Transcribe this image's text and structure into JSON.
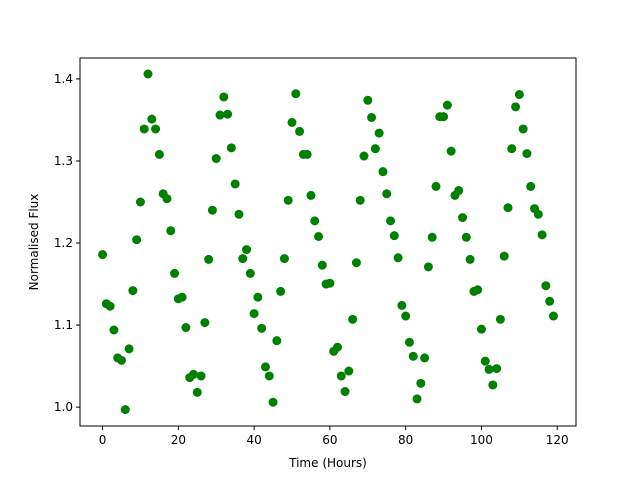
{
  "chart_data": {
    "type": "scatter",
    "x_label": "Time (Hours)",
    "y_label": "Normalised Flux",
    "xlim": [
      -5.95,
      124.95
    ],
    "ylim": [
      0.977,
      1.4255
    ],
    "xticks": [
      0,
      20,
      40,
      60,
      80,
      100,
      120
    ],
    "yticks": [
      {
        "value": 1.0,
        "label": "1.0"
      },
      1.1,
      1.2,
      1.3,
      1.4
    ],
    "series": [
      {
        "color": "#008000",
        "x": [
          0,
          1,
          2,
          3,
          4,
          5,
          6,
          7,
          8,
          9,
          10,
          11,
          12,
          13,
          14,
          15,
          16,
          17,
          18,
          19,
          20,
          21,
          22,
          23,
          24,
          25,
          26,
          27,
          28,
          29,
          30,
          31,
          32,
          33,
          34,
          35,
          36,
          37,
          38,
          39,
          40,
          41,
          42,
          43,
          44,
          45,
          46,
          47,
          48,
          49,
          50,
          51,
          52,
          53,
          54,
          55,
          56,
          57,
          58,
          59,
          60,
          61,
          62,
          63,
          64,
          65,
          66,
          67,
          68,
          69,
          70,
          71,
          72,
          73,
          74,
          75,
          76,
          77,
          78,
          79,
          80,
          81,
          82,
          83,
          84,
          85,
          86,
          87,
          88,
          89,
          90,
          91,
          92,
          93,
          94,
          95,
          96,
          97,
          98,
          99,
          100,
          101,
          102,
          103,
          104,
          105,
          106,
          107,
          108,
          109,
          110,
          111,
          112,
          113,
          114,
          115,
          116,
          117,
          118,
          119
        ],
        "values": [
          1.186,
          1.126,
          1.123,
          1.094,
          1.06,
          1.057,
          0.997,
          1.071,
          1.142,
          1.204,
          1.25,
          1.339,
          1.406,
          1.351,
          1.339,
          1.308,
          1.26,
          1.254,
          1.215,
          1.163,
          1.132,
          1.134,
          1.097,
          1.036,
          1.04,
          1.018,
          1.038,
          1.103,
          1.18,
          1.24,
          1.303,
          1.356,
          1.378,
          1.357,
          1.316,
          1.272,
          1.235,
          1.181,
          1.192,
          1.163,
          1.114,
          1.134,
          1.096,
          1.049,
          1.038,
          1.006,
          1.081,
          1.141,
          1.181,
          1.252,
          1.347,
          1.382,
          1.336,
          1.308,
          1.308,
          1.258,
          1.227,
          1.208,
          1.173,
          1.15,
          1.151,
          1.068,
          1.073,
          1.038,
          1.019,
          1.044,
          1.107,
          1.176,
          1.252,
          1.306,
          1.374,
          1.353,
          1.315,
          1.334,
          1.287,
          1.26,
          1.227,
          1.209,
          1.182,
          1.124,
          1.111,
          1.079,
          1.062,
          1.01,
          1.029,
          1.06,
          1.171,
          1.207,
          1.269,
          1.354,
          1.354,
          1.368,
          1.312,
          1.258,
          1.264,
          1.231,
          1.207,
          1.18,
          1.141,
          1.143,
          1.095,
          1.056,
          1.046,
          1.027,
          1.047,
          1.107,
          1.184,
          1.243,
          1.315,
          1.366,
          1.381,
          1.339,
          1.309,
          1.269,
          1.242,
          1.235,
          1.21,
          1.148,
          1.129,
          1.111
        ]
      }
    ]
  }
}
